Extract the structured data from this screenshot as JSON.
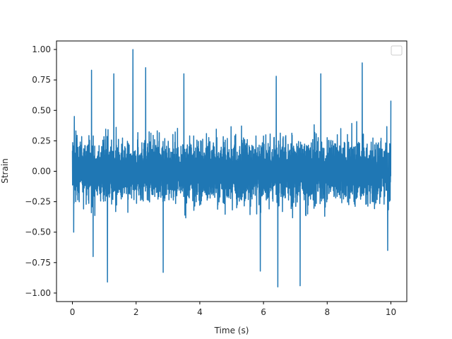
{
  "chart_data": {
    "type": "line",
    "title": "",
    "xlabel": "Time (s)",
    "ylabel": "Strain",
    "xlim": [
      -0.5,
      10.5
    ],
    "ylim": [
      -1.07,
      1.07
    ],
    "xticks": [
      0,
      2,
      4,
      6,
      8,
      10
    ],
    "xtick_labels": [
      "0",
      "2",
      "4",
      "6",
      "8",
      "10"
    ],
    "yticks": [
      -1.0,
      -0.75,
      -0.5,
      -0.25,
      0.0,
      0.25,
      0.5,
      0.75,
      1.0
    ],
    "ytick_labels": [
      "−1.00",
      "−0.75",
      "−0.50",
      "−0.25",
      "0.00",
      "0.25",
      "0.50",
      "0.75",
      "1.00"
    ],
    "grid": false,
    "legend": {
      "placement": "top-right",
      "entries": []
    },
    "series": [
      {
        "color": "#1f77b4",
        "x_range": [
          0,
          10
        ],
        "amplitude_envelope": {
          "typical_abs_peak": 0.45,
          "max": 1.0,
          "min": -0.95
        },
        "notable_peaks": [
          {
            "x": 0.06,
            "y": 0.45
          },
          {
            "x": 0.6,
            "y": 0.83
          },
          {
            "x": 1.3,
            "y": 0.8
          },
          {
            "x": 1.9,
            "y": 1.0
          },
          {
            "x": 2.3,
            "y": 0.85
          },
          {
            "x": 3.5,
            "y": 0.8
          },
          {
            "x": 6.4,
            "y": 0.78
          },
          {
            "x": 7.8,
            "y": 0.8
          },
          {
            "x": 9.1,
            "y": 0.89
          },
          {
            "x": 10.0,
            "y": 0.58
          }
        ],
        "notable_troughs": [
          {
            "x": 0.04,
            "y": -0.5
          },
          {
            "x": 0.65,
            "y": -0.7
          },
          {
            "x": 1.1,
            "y": -0.91
          },
          {
            "x": 2.85,
            "y": -0.83
          },
          {
            "x": 5.9,
            "y": -0.82
          },
          {
            "x": 6.45,
            "y": -0.95
          },
          {
            "x": 7.15,
            "y": -0.94
          },
          {
            "x": 9.9,
            "y": -0.65
          }
        ]
      }
    ]
  }
}
